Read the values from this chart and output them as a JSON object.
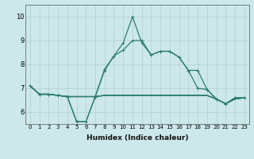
{
  "xlabel": "Humidex (Indice chaleur)",
  "line_color": "#2e7d6e",
  "bg_color": "#cce8ea",
  "grid_color": "#b0cfd0",
  "xlim": [
    -0.5,
    23.5
  ],
  "ylim": [
    5.5,
    10.5
  ],
  "yticks": [
    6,
    7,
    8,
    9,
    10
  ],
  "xticks": [
    0,
    1,
    2,
    3,
    4,
    5,
    6,
    7,
    8,
    9,
    10,
    11,
    12,
    13,
    14,
    15,
    16,
    17,
    18,
    19,
    20,
    21,
    22,
    23
  ],
  "series": {
    "line1": [
      7.1,
      6.75,
      6.75,
      6.7,
      6.65,
      5.6,
      5.6,
      6.65,
      7.8,
      8.35,
      8.9,
      10.0,
      8.9,
      8.4,
      8.55,
      8.55,
      8.3,
      7.75,
      7.75,
      6.95,
      6.55,
      6.35,
      6.6,
      6.6
    ],
    "line2": [
      7.1,
      6.75,
      6.75,
      6.7,
      6.65,
      5.6,
      5.6,
      6.65,
      7.75,
      8.35,
      8.6,
      9.0,
      9.0,
      8.4,
      8.55,
      8.55,
      8.3,
      7.75,
      7.0,
      6.95,
      6.55,
      6.35,
      6.6,
      6.6
    ],
    "flat1": [
      7.1,
      6.75,
      6.75,
      6.7,
      6.65,
      6.65,
      6.65,
      6.65,
      6.7,
      6.7,
      6.7,
      6.7,
      6.7,
      6.7,
      6.7,
      6.7,
      6.7,
      6.7,
      6.7,
      6.7,
      6.55,
      6.35,
      6.55,
      6.6
    ],
    "flat2": [
      7.1,
      6.75,
      6.75,
      6.7,
      6.65,
      6.65,
      6.65,
      6.65,
      6.7,
      6.7,
      6.7,
      6.7,
      6.7,
      6.7,
      6.7,
      6.7,
      6.7,
      6.7,
      6.7,
      6.7,
      6.55,
      6.35,
      6.55,
      6.6
    ],
    "flat3": [
      7.1,
      6.75,
      6.75,
      6.7,
      6.65,
      6.65,
      6.65,
      6.65,
      6.7,
      6.7,
      6.7,
      6.7,
      6.7,
      6.7,
      6.7,
      6.7,
      6.7,
      6.7,
      6.7,
      6.7,
      6.55,
      6.35,
      6.55,
      6.6
    ]
  }
}
